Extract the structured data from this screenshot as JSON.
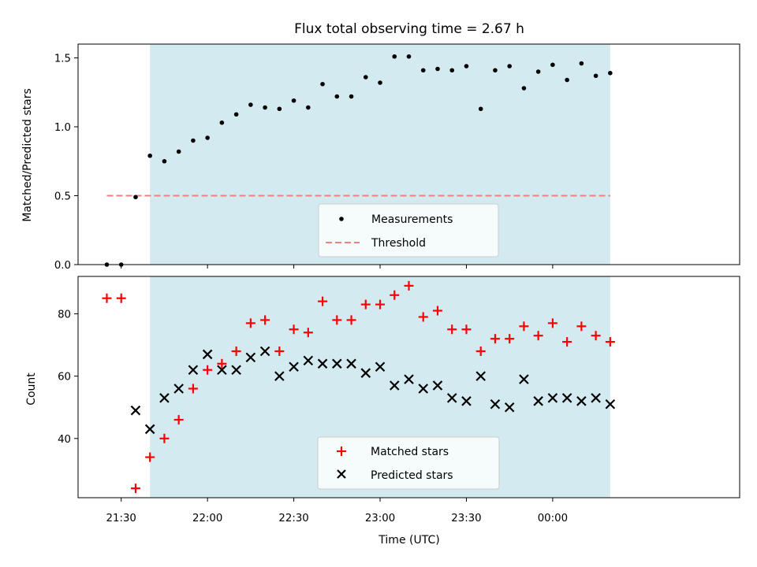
{
  "chart_data": [
    {
      "type": "scatter",
      "title": "Flux total observing time = 2.67 h",
      "ylabel": "Matched/Predicted stars",
      "xlabel": "",
      "ylim": [
        0,
        1.6
      ],
      "xlim": [
        "21:15",
        "01:05"
      ],
      "yticks": [
        0.0,
        0.5,
        1.0,
        1.5
      ],
      "ytick_labels": [
        "0.0",
        "0.5",
        "1.0",
        "1.5"
      ],
      "shaded_region": {
        "start": "21:40",
        "end": "00:20",
        "color": "#d3eaf0"
      },
      "threshold": {
        "name": "Threshold",
        "value": 0.5,
        "start": "21:25",
        "end": "00:20",
        "color": "#f08080",
        "style": "dashed"
      },
      "series": [
        {
          "name": "Measurements",
          "marker": "dot",
          "color": "#000000",
          "x": [
            "21:25",
            "21:30",
            "21:35",
            "21:40",
            "21:45",
            "21:50",
            "21:55",
            "22:00",
            "22:05",
            "22:10",
            "22:15",
            "22:20",
            "22:25",
            "22:30",
            "22:35",
            "22:40",
            "22:45",
            "22:50",
            "22:55",
            "23:00",
            "23:05",
            "23:10",
            "23:15",
            "23:20",
            "23:25",
            "23:30",
            "23:35",
            "23:40",
            "23:45",
            "23:50",
            "23:55",
            "00:00",
            "00:05",
            "00:10",
            "00:15",
            "00:20"
          ],
          "y": [
            0.0,
            0.0,
            0.49,
            0.79,
            0.75,
            0.82,
            0.9,
            0.92,
            1.03,
            1.09,
            1.16,
            1.14,
            1.13,
            1.19,
            1.14,
            1.31,
            1.22,
            1.22,
            1.36,
            1.32,
            1.51,
            1.51,
            1.41,
            1.42,
            1.41,
            1.44,
            1.13,
            1.41,
            1.44,
            1.28,
            1.4,
            1.45,
            1.34,
            1.46,
            1.37,
            1.39
          ]
        }
      ],
      "legend": {
        "placement": "lower-center",
        "entries": [
          "Measurements",
          "Threshold"
        ]
      },
      "grid": false
    },
    {
      "type": "scatter",
      "title": "",
      "ylabel": "Count",
      "xlabel": "Time (UTC)",
      "ylim": [
        21,
        92
      ],
      "xlim": [
        "21:15",
        "01:05"
      ],
      "yticks": [
        40,
        60,
        80
      ],
      "ytick_labels": [
        "40",
        "60",
        "80"
      ],
      "xticks": [
        "21:30",
        "22:00",
        "22:30",
        "23:00",
        "23:30",
        "00:00"
      ],
      "xtick_labels": [
        "21:30",
        "22:00",
        "22:30",
        "23:00",
        "23:30",
        "00:00"
      ],
      "shaded_region": {
        "start": "21:40",
        "end": "00:20",
        "color": "#d3eaf0"
      },
      "series": [
        {
          "name": "Matched stars",
          "marker": "plus",
          "color": "#ff0000",
          "x": [
            "21:25",
            "21:30",
            "21:35",
            "21:40",
            "21:45",
            "21:50",
            "21:55",
            "22:00",
            "22:05",
            "22:10",
            "22:15",
            "22:20",
            "22:25",
            "22:30",
            "22:35",
            "22:40",
            "22:45",
            "22:50",
            "22:55",
            "23:00",
            "23:05",
            "23:10",
            "23:15",
            "23:20",
            "23:25",
            "23:30",
            "23:35",
            "23:40",
            "23:45",
            "23:50",
            "23:55",
            "00:00",
            "00:05",
            "00:10",
            "00:15",
            "00:20"
          ],
          "y": [
            85,
            85,
            24,
            34,
            40,
            46,
            56,
            62,
            64,
            68,
            77,
            78,
            68,
            75,
            74,
            84,
            78,
            78,
            83,
            83,
            86,
            89,
            79,
            81,
            75,
            75,
            68,
            72,
            72,
            76,
            73,
            77,
            71,
            76,
            73,
            71
          ]
        },
        {
          "name": "Predicted stars",
          "marker": "x",
          "color": "#000000",
          "x": [
            "21:35",
            "21:40",
            "21:45",
            "21:50",
            "21:55",
            "22:00",
            "22:05",
            "22:10",
            "22:15",
            "22:20",
            "22:25",
            "22:30",
            "22:35",
            "22:40",
            "22:45",
            "22:50",
            "22:55",
            "23:00",
            "23:05",
            "23:10",
            "23:15",
            "23:20",
            "23:25",
            "23:30",
            "23:35",
            "23:40",
            "23:45",
            "23:50",
            "23:55",
            "00:00",
            "00:05",
            "00:10",
            "00:15",
            "00:20"
          ],
          "y": [
            49,
            43,
            53,
            56,
            62,
            67,
            62,
            62,
            66,
            68,
            60,
            63,
            65,
            64,
            64,
            64,
            61,
            63,
            57,
            59,
            56,
            57,
            53,
            52,
            60,
            51,
            50,
            59,
            52,
            53,
            53,
            52,
            53,
            51
          ]
        }
      ],
      "legend": {
        "placement": "lower-center",
        "entries": [
          "Matched stars",
          "Predicted stars"
        ]
      },
      "grid": false
    }
  ]
}
